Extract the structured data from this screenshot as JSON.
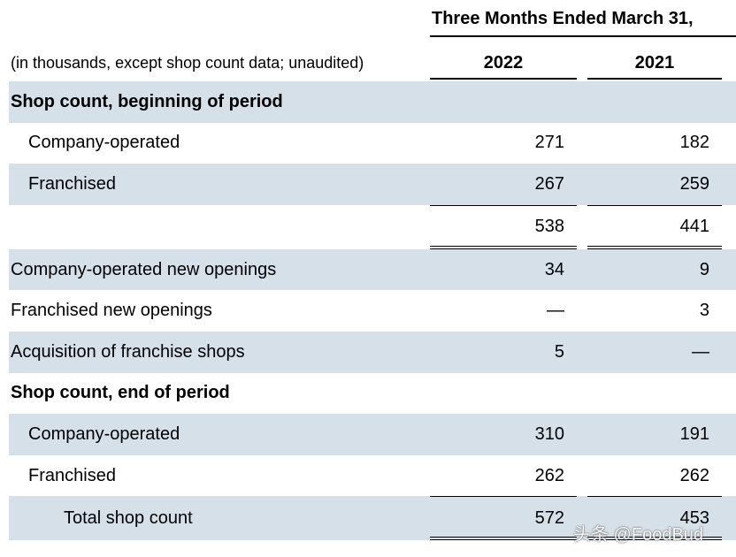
{
  "header": {
    "period": "Three Months Ended March 31,",
    "note": "(in thousands, except shop count data; unaudited)",
    "year1": "2022",
    "year2": "2021"
  },
  "rows": [
    {
      "label": "Shop count, beginning of period",
      "v1": "",
      "v2": ""
    },
    {
      "label": "Company-operated",
      "v1": "271",
      "v2": "182"
    },
    {
      "label": "Franchised",
      "v1": "267",
      "v2": "259"
    },
    {
      "label": "",
      "v1": "538",
      "v2": "441"
    },
    {
      "label": "Company-operated new openings",
      "v1": "34",
      "v2": "9"
    },
    {
      "label": "Franchised new openings",
      "v1": "—",
      "v2": "3"
    },
    {
      "label": "Acquisition of franchise shops",
      "v1": "5",
      "v2": "—"
    },
    {
      "label": "Shop count, end of period",
      "v1": "",
      "v2": ""
    },
    {
      "label": "Company-operated",
      "v1": "310",
      "v2": "191"
    },
    {
      "label": "Franchised",
      "v1": "262",
      "v2": "262"
    },
    {
      "label": "Total shop count",
      "v1": "572",
      "v2": "453"
    }
  ],
  "watermark": "头条 @FoodBud"
}
